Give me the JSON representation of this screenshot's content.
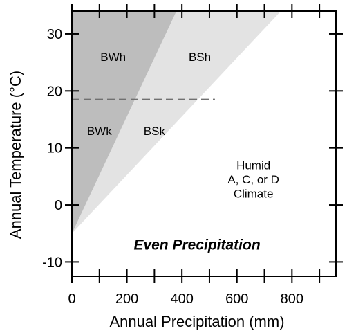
{
  "chart_data": {
    "type": "area",
    "subtitle": "Even Precipitation",
    "xlabel": "Annual Precipitation (mm)",
    "ylabel": "Annual Temperature (°C)",
    "xlim": [
      0,
      960
    ],
    "ylim": [
      -12.5,
      34
    ],
    "x_ticks": [
      0,
      200,
      400,
      600,
      800
    ],
    "y_ticks": [
      -10,
      0,
      10,
      20,
      30
    ],
    "minor_x_ticks": [
      0,
      100,
      200,
      300,
      400,
      500,
      600,
      700,
      800,
      900
    ],
    "grid": false,
    "boundaries": [
      {
        "name": "desert-steppe boundary",
        "x": [
          0,
          380
        ],
        "y": [
          -5,
          34
        ],
        "fill": "#bdbdbd"
      },
      {
        "name": "steppe-humid boundary",
        "x": [
          0,
          760
        ],
        "y": [
          -5,
          34
        ],
        "fill": "#e3e3e3"
      }
    ],
    "threshold_line": {
      "y": 18.5,
      "x": [
        0,
        520
      ],
      "style": "dashed",
      "color": "#707070"
    },
    "regions": [
      {
        "label": "BWh",
        "x": 150,
        "y": 26
      },
      {
        "label": "BSh",
        "x": 465,
        "y": 26
      },
      {
        "label": "BWk",
        "x": 100,
        "y": 13
      },
      {
        "label": "BSk",
        "x": 300,
        "y": 13
      },
      {
        "label": "Humid",
        "x": 660,
        "y": 7
      },
      {
        "label": "A, C, or D",
        "x": 660,
        "y": 4.5
      },
      {
        "label": "Climate",
        "x": 660,
        "y": 2
      }
    ]
  }
}
